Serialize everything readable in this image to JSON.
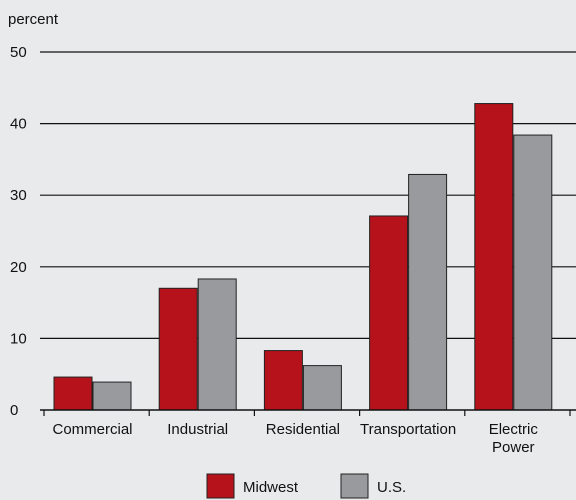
{
  "chart_data": {
    "type": "bar",
    "ylabel": "percent",
    "ylim": [
      0,
      50
    ],
    "yticks": [
      0,
      10,
      20,
      30,
      40,
      50
    ],
    "grid": true,
    "legend_position": "bottom",
    "categories": [
      [
        "Commercial"
      ],
      [
        "Industrial"
      ],
      [
        "Residential"
      ],
      [
        "Transportation"
      ],
      [
        "Electric",
        "Power"
      ]
    ],
    "series": [
      {
        "name": "Midwest",
        "color": "#b5121b",
        "values": [
          4.6,
          17.0,
          8.3,
          27.1,
          42.8
        ]
      },
      {
        "name": "U.S.",
        "color": "#999a9d",
        "values": [
          3.9,
          18.3,
          6.2,
          32.9,
          38.4
        ]
      }
    ]
  }
}
